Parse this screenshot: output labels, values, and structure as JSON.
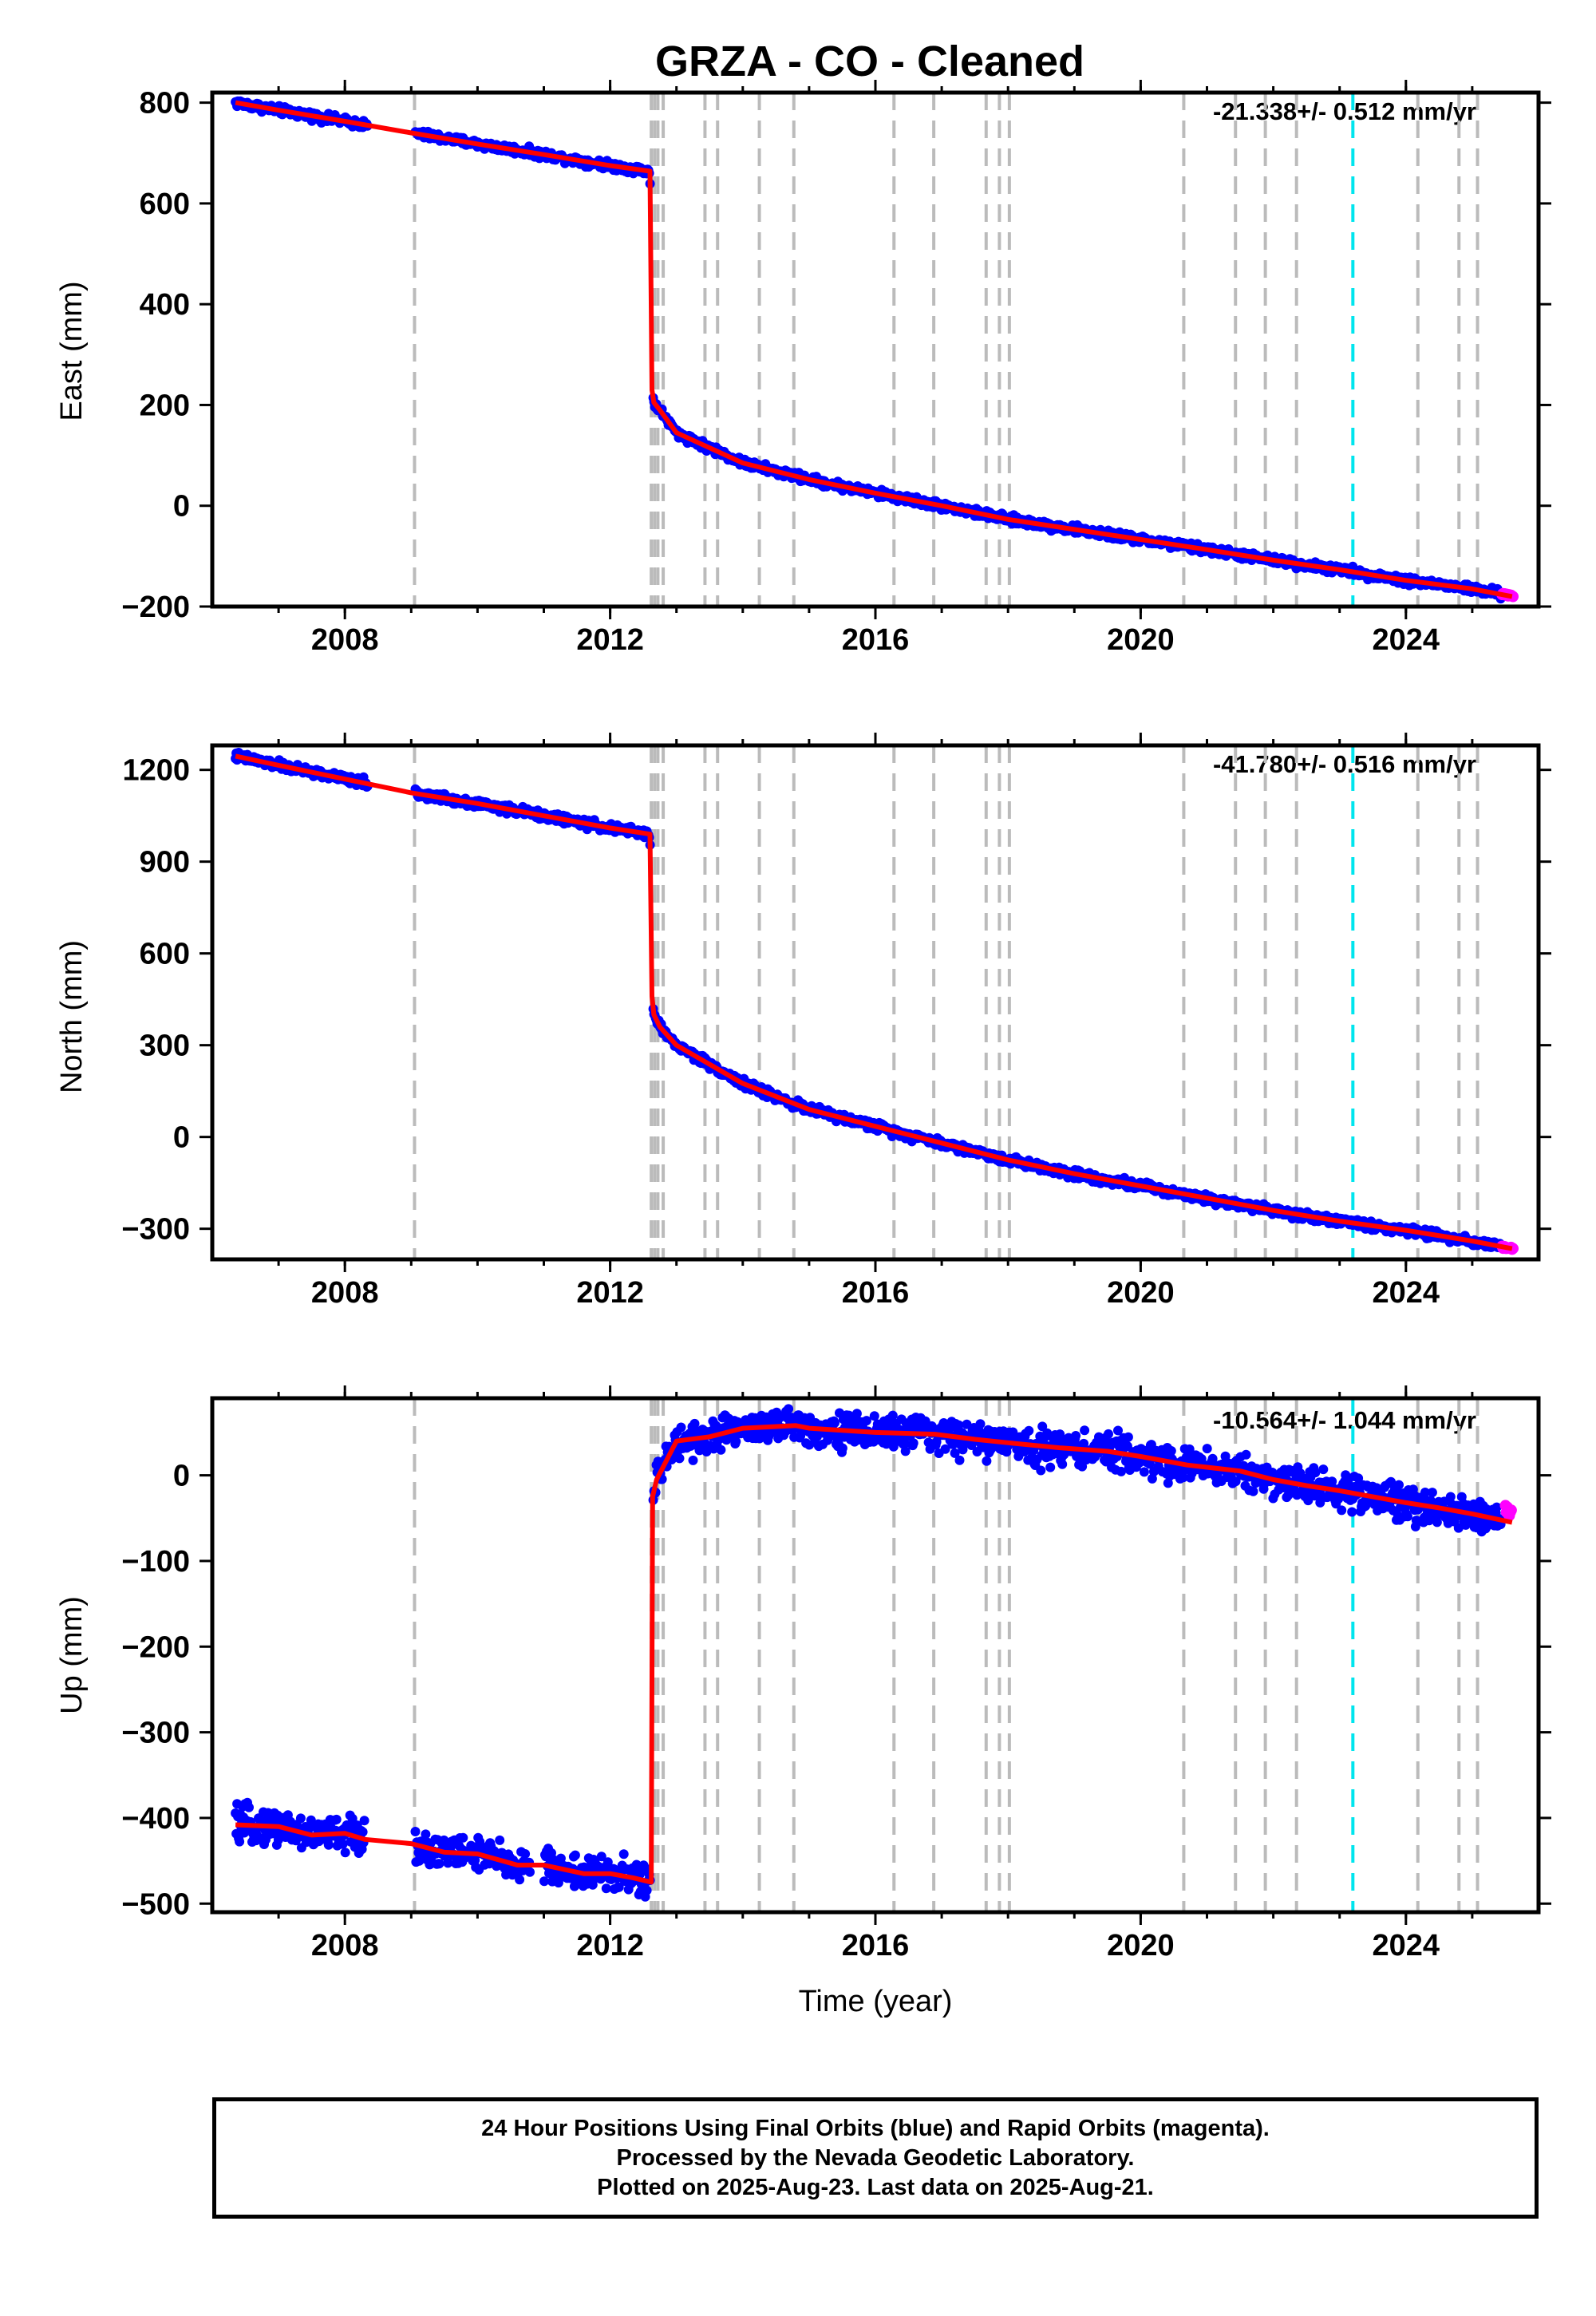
{
  "title": "GRZA  - CO - Cleaned",
  "xlabel": "Time (year)",
  "footer": {
    "line1": "24 Hour Positions Using Final Orbits (blue) and Rapid Orbits (magenta).",
    "line2": "Processed by the Nevada Geodetic Laboratory.",
    "line3": "Plotted on 2025-Aug-23. Last data on 2025-Aug-21."
  },
  "colors": {
    "final_orbits": "#0000ff",
    "rapid_orbits": "#ff00ff",
    "model": "#ff0000",
    "event_lines": "#bbbbbb",
    "highlight_line": "#00e5ee"
  },
  "chart_data": [
    {
      "type": "scatter",
      "panel": "east",
      "ylabel": "East (mm)",
      "rate_text": "-21.338+/- 0.512 mm/yr",
      "xlim": [
        2006.0,
        2026.0
      ],
      "ylim": [
        -200,
        820
      ],
      "xticks": [
        2008,
        2012,
        2016,
        2020,
        2024
      ],
      "yticks": [
        -200,
        0,
        200,
        400,
        600,
        800
      ],
      "series": [
        {
          "x": [
            2006.35,
            2007.0,
            2008.0,
            2009.0,
            2010.0,
            2011.0,
            2012.0,
            2012.6,
            2012.63,
            2012.66,
            2012.75,
            2013.0,
            2014.0,
            2015.0,
            2016.0,
            2017.0,
            2018.0,
            2019.0,
            2020.0,
            2021.0,
            2022.0,
            2023.0,
            2024.0,
            2025.0,
            2025.6
          ],
          "y": [
            800,
            785,
            763,
            740,
            718,
            697,
            675,
            664,
            230,
            205,
            190,
            145,
            85,
            52,
            25,
            0,
            -27,
            -47,
            -67,
            -87,
            -108,
            -127,
            -148,
            -165,
            -180
          ]
        }
      ],
      "rapid_x": [
        2025.45,
        2025.62
      ],
      "rapid_y": [
        -175,
        -180
      ]
    },
    {
      "type": "scatter",
      "panel": "north",
      "ylabel": "North (mm)",
      "rate_text": "-41.780+/- 0.516 mm/yr",
      "xlim": [
        2006.0,
        2026.0
      ],
      "ylim": [
        -400,
        1280
      ],
      "xticks": [
        2008,
        2012,
        2016,
        2020,
        2024
      ],
      "yticks": [
        -300,
        0,
        300,
        600,
        900,
        1200
      ],
      "series": [
        {
          "x": [
            2006.35,
            2007.0,
            2008.0,
            2009.0,
            2010.0,
            2011.0,
            2012.0,
            2012.6,
            2012.63,
            2012.66,
            2012.75,
            2013.0,
            2014.0,
            2015.0,
            2016.0,
            2017.0,
            2018.0,
            2019.0,
            2020.0,
            2021.0,
            2022.0,
            2023.0,
            2024.0,
            2025.0,
            2025.6
          ],
          "y": [
            1245,
            1215,
            1170,
            1125,
            1090,
            1050,
            1010,
            990,
            460,
            400,
            360,
            300,
            175,
            90,
            35,
            -20,
            -75,
            -120,
            -160,
            -200,
            -240,
            -275,
            -305,
            -340,
            -365
          ]
        }
      ],
      "rapid_x": [
        2025.45,
        2025.62
      ],
      "rapid_y": [
        -360,
        -365
      ]
    },
    {
      "type": "scatter",
      "panel": "up",
      "ylabel": "Up (mm)",
      "rate_text": "-10.564+/- 1.044 mm/yr",
      "xlim": [
        2006.0,
        2026.0
      ],
      "ylim": [
        -510,
        90
      ],
      "xticks": [
        2008,
        2012,
        2016,
        2020,
        2024
      ],
      "yticks": [
        -500,
        -400,
        -300,
        -200,
        -100,
        0
      ],
      "series": [
        {
          "x": [
            2006.35,
            2007.0,
            2007.5,
            2008.0,
            2008.3,
            2009.0,
            2009.5,
            2010.0,
            2010.6,
            2011.0,
            2011.6,
            2012.0,
            2012.35,
            2012.62,
            2012.64,
            2012.7,
            2013.0,
            2013.5,
            2014.0,
            2014.8,
            2015.0,
            2016.0,
            2016.9,
            2017.5,
            2018.0,
            2018.8,
            2019.5,
            2020.0,
            2020.7,
            2021.5,
            2022.0,
            2022.5,
            2023.0,
            2023.5,
            2024.0,
            2024.5,
            2025.0,
            2025.6
          ],
          "y": [
            -408,
            -410,
            -420,
            -418,
            -425,
            -430,
            -440,
            -442,
            -455,
            -455,
            -465,
            -465,
            -470,
            -475,
            -25,
            -5,
            40,
            45,
            55,
            58,
            55,
            50,
            48,
            42,
            38,
            32,
            28,
            22,
            12,
            5,
            -5,
            -12,
            -18,
            -25,
            -32,
            -38,
            -45,
            -55
          ]
        }
      ],
      "rapid_x": [
        2025.5,
        2025.6
      ],
      "rapid_y": [
        -38,
        -45
      ]
    }
  ],
  "event_lines_x": [
    2009.05,
    2012.62,
    2012.67,
    2012.72,
    2012.8,
    2013.43,
    2013.62,
    2014.25,
    2014.77,
    2016.28,
    2016.88,
    2017.67,
    2017.87,
    2018.02,
    2020.65,
    2021.43,
    2021.88,
    2022.35,
    2024.18,
    2024.8,
    2025.08
  ],
  "highlight_line_x": [
    2023.2
  ]
}
